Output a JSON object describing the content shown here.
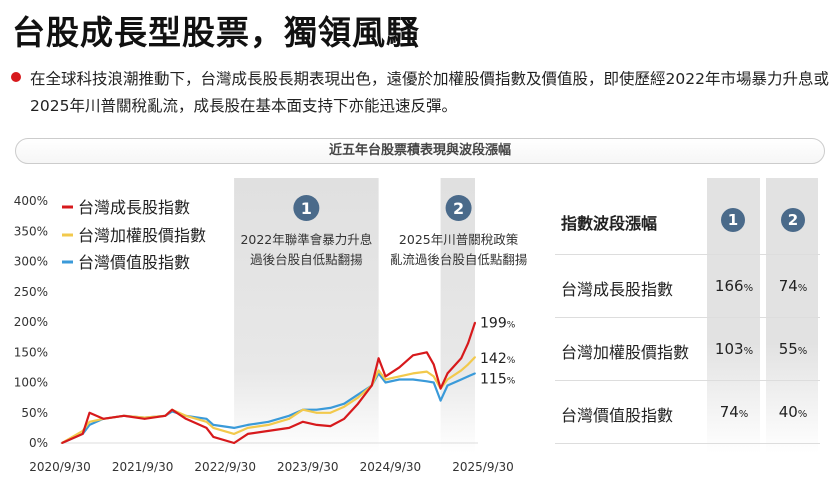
{
  "title": "台股成長型股票，獨領風騷",
  "description": "在全球科技浪潮推動下，台灣成長股長期表現出色，遠優於加權股價指數及價值股，即使歷經2022年市場暴力升息或2025年川普關稅亂流，成長股在基本面支持下亦能迅速反彈。",
  "section_label": "近五年台股票積表現與波段漲幅",
  "colors": {
    "growth": "#d7191c",
    "weighted": "#f2c94c",
    "value": "#3a9ad9",
    "badge": "#4a6a8a",
    "bullet": "#d7191c"
  },
  "chart_data": {
    "type": "line",
    "x": [
      "2020-09",
      "2020-12",
      "2021-01",
      "2021-03",
      "2021-06",
      "2021-09",
      "2021-12",
      "2022-01",
      "2022-03",
      "2022-06",
      "2022-07",
      "2022-10",
      "2022-12",
      "2023-03",
      "2023-06",
      "2023-08",
      "2023-10",
      "2023-12",
      "2024-02",
      "2024-04",
      "2024-06",
      "2024-07",
      "2024-08",
      "2024-10",
      "2024-12",
      "2025-02",
      "2025-03",
      "2025-04",
      "2025-05",
      "2025-07",
      "2025-08",
      "2025-09"
    ],
    "series": [
      {
        "name": "台灣成長股指數",
        "color": "#d7191c",
        "end_label": "199",
        "values": [
          0,
          15,
          50,
          40,
          45,
          40,
          45,
          55,
          40,
          25,
          10,
          0,
          15,
          20,
          25,
          35,
          30,
          28,
          40,
          65,
          95,
          140,
          110,
          125,
          145,
          150,
          130,
          90,
          115,
          140,
          165,
          199
        ]
      },
      {
        "name": "台灣加權股價指數",
        "color": "#f2c94c",
        "end_label": "142",
        "values": [
          0,
          20,
          35,
          40,
          45,
          42,
          45,
          55,
          45,
          35,
          25,
          15,
          25,
          30,
          40,
          55,
          50,
          50,
          60,
          75,
          95,
          120,
          105,
          110,
          115,
          118,
          110,
          90,
          105,
          120,
          130,
          142
        ]
      },
      {
        "name": "台灣價值股指數",
        "color": "#3a9ad9",
        "end_label": "115",
        "values": [
          0,
          15,
          30,
          40,
          45,
          42,
          45,
          52,
          45,
          40,
          30,
          25,
          30,
          35,
          45,
          55,
          55,
          58,
          65,
          80,
          95,
          115,
          100,
          105,
          105,
          102,
          100,
          70,
          95,
          105,
          110,
          115
        ]
      }
    ],
    "unit": "%",
    "ylim": [
      0,
      400
    ],
    "yticks": [
      "0%",
      "50%",
      "100%",
      "150%",
      "200%",
      "250%",
      "300%",
      "350%",
      "400%"
    ],
    "xticks": [
      "2020/9/30",
      "2021/9/30",
      "2022/9/30",
      "2023/9/30",
      "2024/9/30",
      "2025/9/30"
    ],
    "legend": "top-left",
    "grid": false,
    "annotations": [
      {
        "badge": "1",
        "line1": "2022年聯準會暴力升息",
        "line2": "過後台股自低點翻揚",
        "from": "2022-10",
        "to": "2024-07"
      },
      {
        "badge": "2",
        "line1": "2025年川普關稅政策",
        "line2": "亂流過後台股自低點翻揚",
        "from": "2025-04",
        "to": "2025-09"
      }
    ]
  },
  "table": {
    "header": "指數波段漲幅",
    "columns": [
      "1",
      "2"
    ],
    "unit": "%",
    "rows": [
      {
        "label": "台灣成長股指數",
        "v1": "166",
        "v2": "74"
      },
      {
        "label": "台灣加權股價指數",
        "v1": "103",
        "v2": "55"
      },
      {
        "label": "台灣價值股指數",
        "v1": "74",
        "v2": "40"
      }
    ]
  }
}
